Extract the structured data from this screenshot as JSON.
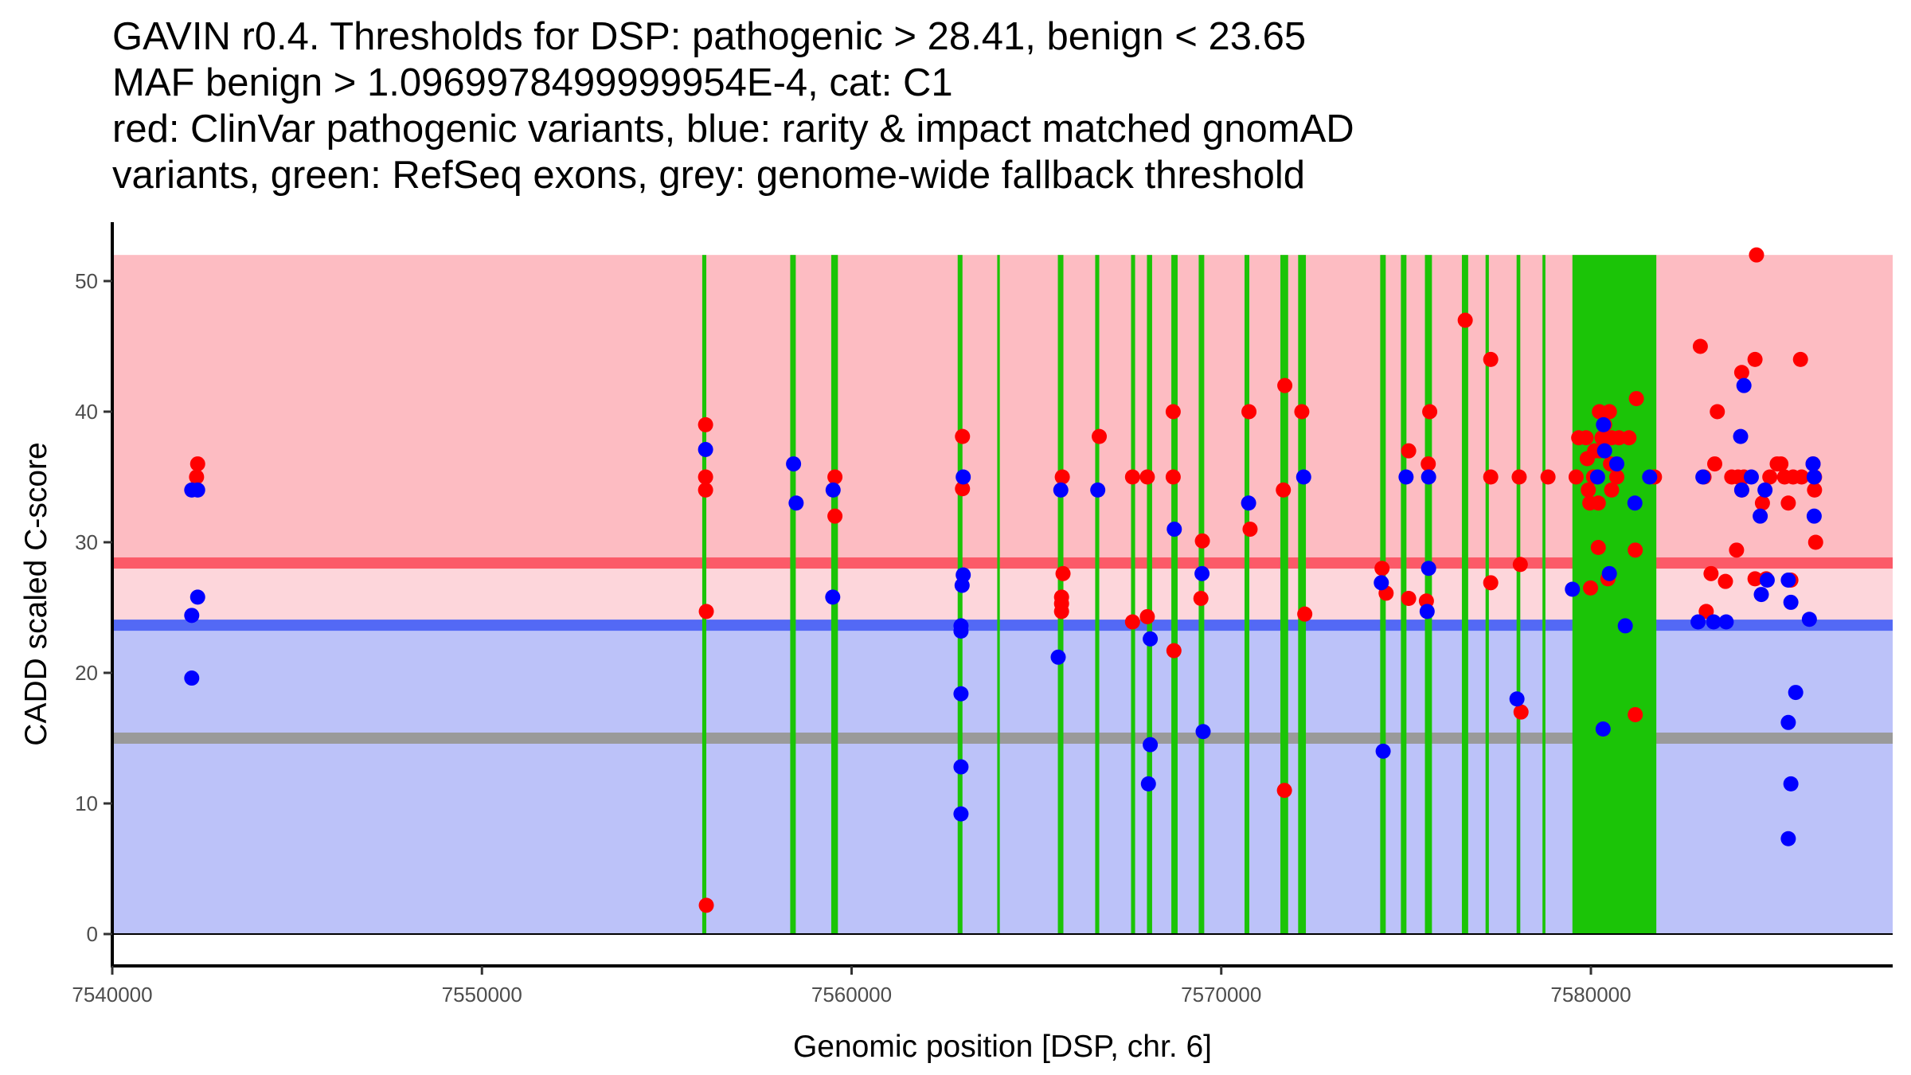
{
  "chart_data": {
    "type": "scatter",
    "title_lines": [
      "GAVIN r0.4. Thresholds for DSP: pathogenic > 28.41, benign < 23.65",
      "MAF benign > 1.0969978499999954E-4, cat: C1",
      "red: ClinVar pathogenic variants, blue: rarity & impact matched gnomAD",
      "variants, green: RefSeq exons, grey: genome-wide fallback threshold"
    ],
    "xlabel": "Genomic position [DSP, chr. 6]",
    "ylabel": "CADD scaled C-score",
    "xlim": [
      7540000,
      7588164
    ],
    "ylim": [
      -2.44,
      54.51
    ],
    "x_ticks": [
      7540000,
      7550000,
      7560000,
      7570000,
      7580000
    ],
    "x_tick_labels": [
      "7540000",
      "7550000",
      "7560000",
      "7570000",
      "7580000"
    ],
    "y_ticks": [
      0,
      10,
      20,
      30,
      40,
      50
    ],
    "y_tick_labels": [
      "0",
      "10",
      "20",
      "30",
      "40",
      "50"
    ],
    "grid": false,
    "legend": "none",
    "colors": {
      "pathogenic_zone": "#FDBCC2",
      "intermediate_zone": "#FDD6DB",
      "benign_zone": "#BCC2F9",
      "pathogenic_threshold_line": "#FC5A68",
      "benign_threshold_line": "#5369F5",
      "fallback_threshold_line": "#9A9A9A",
      "exon": "#1BC407",
      "clinvar_point": "#FF0000",
      "gnomad_point": "#0000FF",
      "axis": "#000000"
    },
    "zones": {
      "pathogenic": [
        28.41,
        52
      ],
      "intermediate": [
        23.65,
        28.41
      ],
      "benign": [
        0,
        23.65
      ]
    },
    "thresholds": {
      "pathogenic": 28.41,
      "benign": 23.65,
      "genome_wide_fallback": 15.0
    },
    "zero_line": 0,
    "exons": [
      {
        "start": 7555960,
        "end": 7556070
      },
      {
        "start": 7558340,
        "end": 7558490
      },
      {
        "start": 7559450,
        "end": 7559630
      },
      {
        "start": 7562870,
        "end": 7563000
      },
      {
        "start": 7563940,
        "end": 7564010
      },
      {
        "start": 7565580,
        "end": 7565730
      },
      {
        "start": 7566590,
        "end": 7566700
      },
      {
        "start": 7567560,
        "end": 7567670
      },
      {
        "start": 7567990,
        "end": 7568130
      },
      {
        "start": 7568650,
        "end": 7568820
      },
      {
        "start": 7569390,
        "end": 7569540
      },
      {
        "start": 7570630,
        "end": 7570760
      },
      {
        "start": 7571600,
        "end": 7571810
      },
      {
        "start": 7572080,
        "end": 7572290
      },
      {
        "start": 7574300,
        "end": 7574450
      },
      {
        "start": 7574860,
        "end": 7575010
      },
      {
        "start": 7575510,
        "end": 7575700
      },
      {
        "start": 7576510,
        "end": 7576680
      },
      {
        "start": 7577150,
        "end": 7577240
      },
      {
        "start": 7577990,
        "end": 7578090
      },
      {
        "start": 7578690,
        "end": 7578770
      },
      {
        "start": 7579500,
        "end": 7581770
      }
    ],
    "series": [
      {
        "name": "ClinVar pathogenic variants",
        "color": "#FF0000",
        "points": [
          [
            7542280,
            35.0
          ],
          [
            7542310,
            36.0
          ],
          [
            7556050,
            39.0
          ],
          [
            7556050,
            35.0
          ],
          [
            7556050,
            34.0
          ],
          [
            7556070,
            24.7
          ],
          [
            7556070,
            2.2
          ],
          [
            7559550,
            35.0
          ],
          [
            7559550,
            32.0
          ],
          [
            7563000,
            38.1
          ],
          [
            7563000,
            34.1
          ],
          [
            7565700,
            35.0
          ],
          [
            7565720,
            27.6
          ],
          [
            7565680,
            25.8
          ],
          [
            7565680,
            25.3
          ],
          [
            7565680,
            24.7
          ],
          [
            7566700,
            38.1
          ],
          [
            7567600,
            35.0
          ],
          [
            7567600,
            23.9
          ],
          [
            7568000,
            35.0
          ],
          [
            7568000,
            24.3
          ],
          [
            7568700,
            40.0
          ],
          [
            7568700,
            35.0
          ],
          [
            7568720,
            21.7
          ],
          [
            7569490,
            30.1
          ],
          [
            7569450,
            25.7
          ],
          [
            7570750,
            40.0
          ],
          [
            7570780,
            31.0
          ],
          [
            7571680,
            34.0
          ],
          [
            7571720,
            42.0
          ],
          [
            7571710,
            11.0
          ],
          [
            7572180,
            40.0
          ],
          [
            7572260,
            24.5
          ],
          [
            7574350,
            28.0
          ],
          [
            7574460,
            26.1
          ],
          [
            7575070,
            37.0
          ],
          [
            7575070,
            25.7
          ],
          [
            7575640,
            40.0
          ],
          [
            7575600,
            36.0
          ],
          [
            7575550,
            25.5
          ],
          [
            7576600,
            47.0
          ],
          [
            7577290,
            44.0
          ],
          [
            7577290,
            35.0
          ],
          [
            7577290,
            26.9
          ],
          [
            7578060,
            35.0
          ],
          [
            7578090,
            28.3
          ],
          [
            7578110,
            17.0
          ],
          [
            7578840,
            35.0
          ],
          [
            7579600,
            35.0
          ],
          [
            7579670,
            38.0
          ],
          [
            7579870,
            38.0
          ],
          [
            7579900,
            36.4
          ],
          [
            7579930,
            34.0
          ],
          [
            7579990,
            26.5
          ],
          [
            7579970,
            33.0
          ],
          [
            7580200,
            33.0
          ],
          [
            7580070,
            35.0
          ],
          [
            7580100,
            37.0
          ],
          [
            7580230,
            37.0
          ],
          [
            7580200,
            29.6
          ],
          [
            7580230,
            40.0
          ],
          [
            7580500,
            40.0
          ],
          [
            7580370,
            39.0
          ],
          [
            7580300,
            38.0
          ],
          [
            7580560,
            38.0
          ],
          [
            7580760,
            38.0
          ],
          [
            7581030,
            38.0
          ],
          [
            7580460,
            27.2
          ],
          [
            7580560,
            34.0
          ],
          [
            7580700,
            35.0
          ],
          [
            7580530,
            36.0
          ],
          [
            7581230,
            41.0
          ],
          [
            7581200,
            29.4
          ],
          [
            7581200,
            16.8
          ],
          [
            7581720,
            35.0
          ],
          [
            7582960,
            45.0
          ],
          [
            7583060,
            35.0
          ],
          [
            7583120,
            24.7
          ],
          [
            7583250,
            27.6
          ],
          [
            7583350,
            36.0
          ],
          [
            7583420,
            40.0
          ],
          [
            7583640,
            27.0
          ],
          [
            7583810,
            35.0
          ],
          [
            7583980,
            35.0
          ],
          [
            7584080,
            34.0
          ],
          [
            7583940,
            29.4
          ],
          [
            7584080,
            43.0
          ],
          [
            7584140,
            35.0
          ],
          [
            7584440,
            44.0
          ],
          [
            7584480,
            52.0
          ],
          [
            7584440,
            27.2
          ],
          [
            7584640,
            33.0
          ],
          [
            7584740,
            27.2
          ],
          [
            7584840,
            35.0
          ],
          [
            7585040,
            36.0
          ],
          [
            7585140,
            36.0
          ],
          [
            7585240,
            35.0
          ],
          [
            7585470,
            35.0
          ],
          [
            7585700,
            35.0
          ],
          [
            7585340,
            33.0
          ],
          [
            7585410,
            27.1
          ],
          [
            7585670,
            44.0
          ],
          [
            7586010,
            36.0
          ],
          [
            7586050,
            35.0
          ],
          [
            7586050,
            34.0
          ],
          [
            7586080,
            30.0
          ]
        ]
      },
      {
        "name": "rarity & impact matched gnomAD variants",
        "color": "#0000FF",
        "points": [
          [
            7542150,
            34.0
          ],
          [
            7542310,
            34.0
          ],
          [
            7542310,
            25.8
          ],
          [
            7542150,
            24.4
          ],
          [
            7542150,
            19.6
          ],
          [
            7556050,
            37.1
          ],
          [
            7558430,
            36.0
          ],
          [
            7558500,
            33.0
          ],
          [
            7559500,
            34.0
          ],
          [
            7559490,
            25.8
          ],
          [
            7563020,
            35.0
          ],
          [
            7563020,
            27.5
          ],
          [
            7562990,
            26.7
          ],
          [
            7562960,
            23.6
          ],
          [
            7562960,
            23.2
          ],
          [
            7562960,
            18.4
          ],
          [
            7562960,
            12.8
          ],
          [
            7562960,
            9.2
          ],
          [
            7565660,
            34.0
          ],
          [
            7565590,
            21.2
          ],
          [
            7566660,
            34.0
          ],
          [
            7568080,
            22.6
          ],
          [
            7568080,
            14.5
          ],
          [
            7568030,
            11.5
          ],
          [
            7568730,
            31.0
          ],
          [
            7569480,
            27.6
          ],
          [
            7569510,
            15.5
          ],
          [
            7570740,
            33.0
          ],
          [
            7572230,
            35.0
          ],
          [
            7574330,
            26.9
          ],
          [
            7574380,
            14.0
          ],
          [
            7575000,
            35.0
          ],
          [
            7575610,
            35.0
          ],
          [
            7575610,
            28.0
          ],
          [
            7575570,
            24.7
          ],
          [
            7578000,
            18.0
          ],
          [
            7579500,
            26.4
          ],
          [
            7580180,
            35.0
          ],
          [
            7580340,
            39.0
          ],
          [
            7580370,
            37.0
          ],
          [
            7580330,
            15.7
          ],
          [
            7580500,
            27.6
          ],
          [
            7580700,
            36.0
          ],
          [
            7581190,
            33.0
          ],
          [
            7580930,
            23.6
          ],
          [
            7581590,
            35.0
          ],
          [
            7582900,
            23.9
          ],
          [
            7583030,
            35.0
          ],
          [
            7583320,
            23.9
          ],
          [
            7583660,
            23.9
          ],
          [
            7584080,
            34.0
          ],
          [
            7584050,
            38.1
          ],
          [
            7584140,
            42.0
          ],
          [
            7584340,
            35.0
          ],
          [
            7584580,
            32.0
          ],
          [
            7584610,
            26.0
          ],
          [
            7584770,
            27.1
          ],
          [
            7584710,
            34.0
          ],
          [
            7585340,
            27.1
          ],
          [
            7585410,
            25.4
          ],
          [
            7585340,
            16.2
          ],
          [
            7585410,
            11.5
          ],
          [
            7585340,
            7.3
          ],
          [
            7585540,
            18.5
          ],
          [
            7585910,
            24.1
          ],
          [
            7586010,
            36.0
          ],
          [
            7586040,
            35.0
          ],
          [
            7586040,
            32.0
          ]
        ]
      }
    ]
  }
}
